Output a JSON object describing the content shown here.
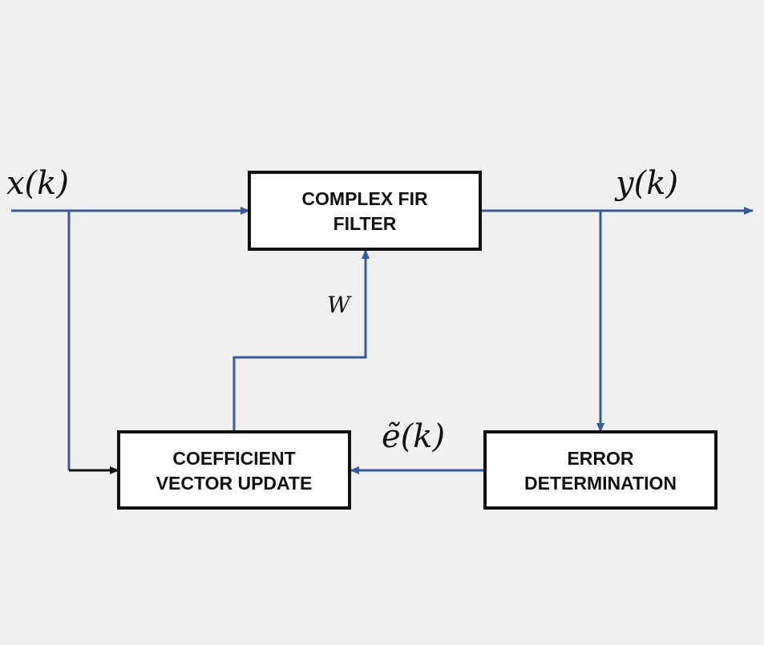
{
  "blocks": {
    "fir_filter": {
      "line1": "COMPLEX FIR",
      "line2": "FILTER"
    },
    "coefficient_update": {
      "line1": "COEFFICIENT",
      "line2": "VECTOR UPDATE"
    },
    "error_determination": {
      "line1": "ERROR",
      "line2": "DETERMINATION"
    }
  },
  "signals": {
    "input": "x(k)",
    "output": "y(k)",
    "weights": "W",
    "error": "ẽ(k)"
  },
  "colors": {
    "signal_line": "#3b5a99",
    "block_border": "#111111",
    "background": "#f0f0f0"
  }
}
